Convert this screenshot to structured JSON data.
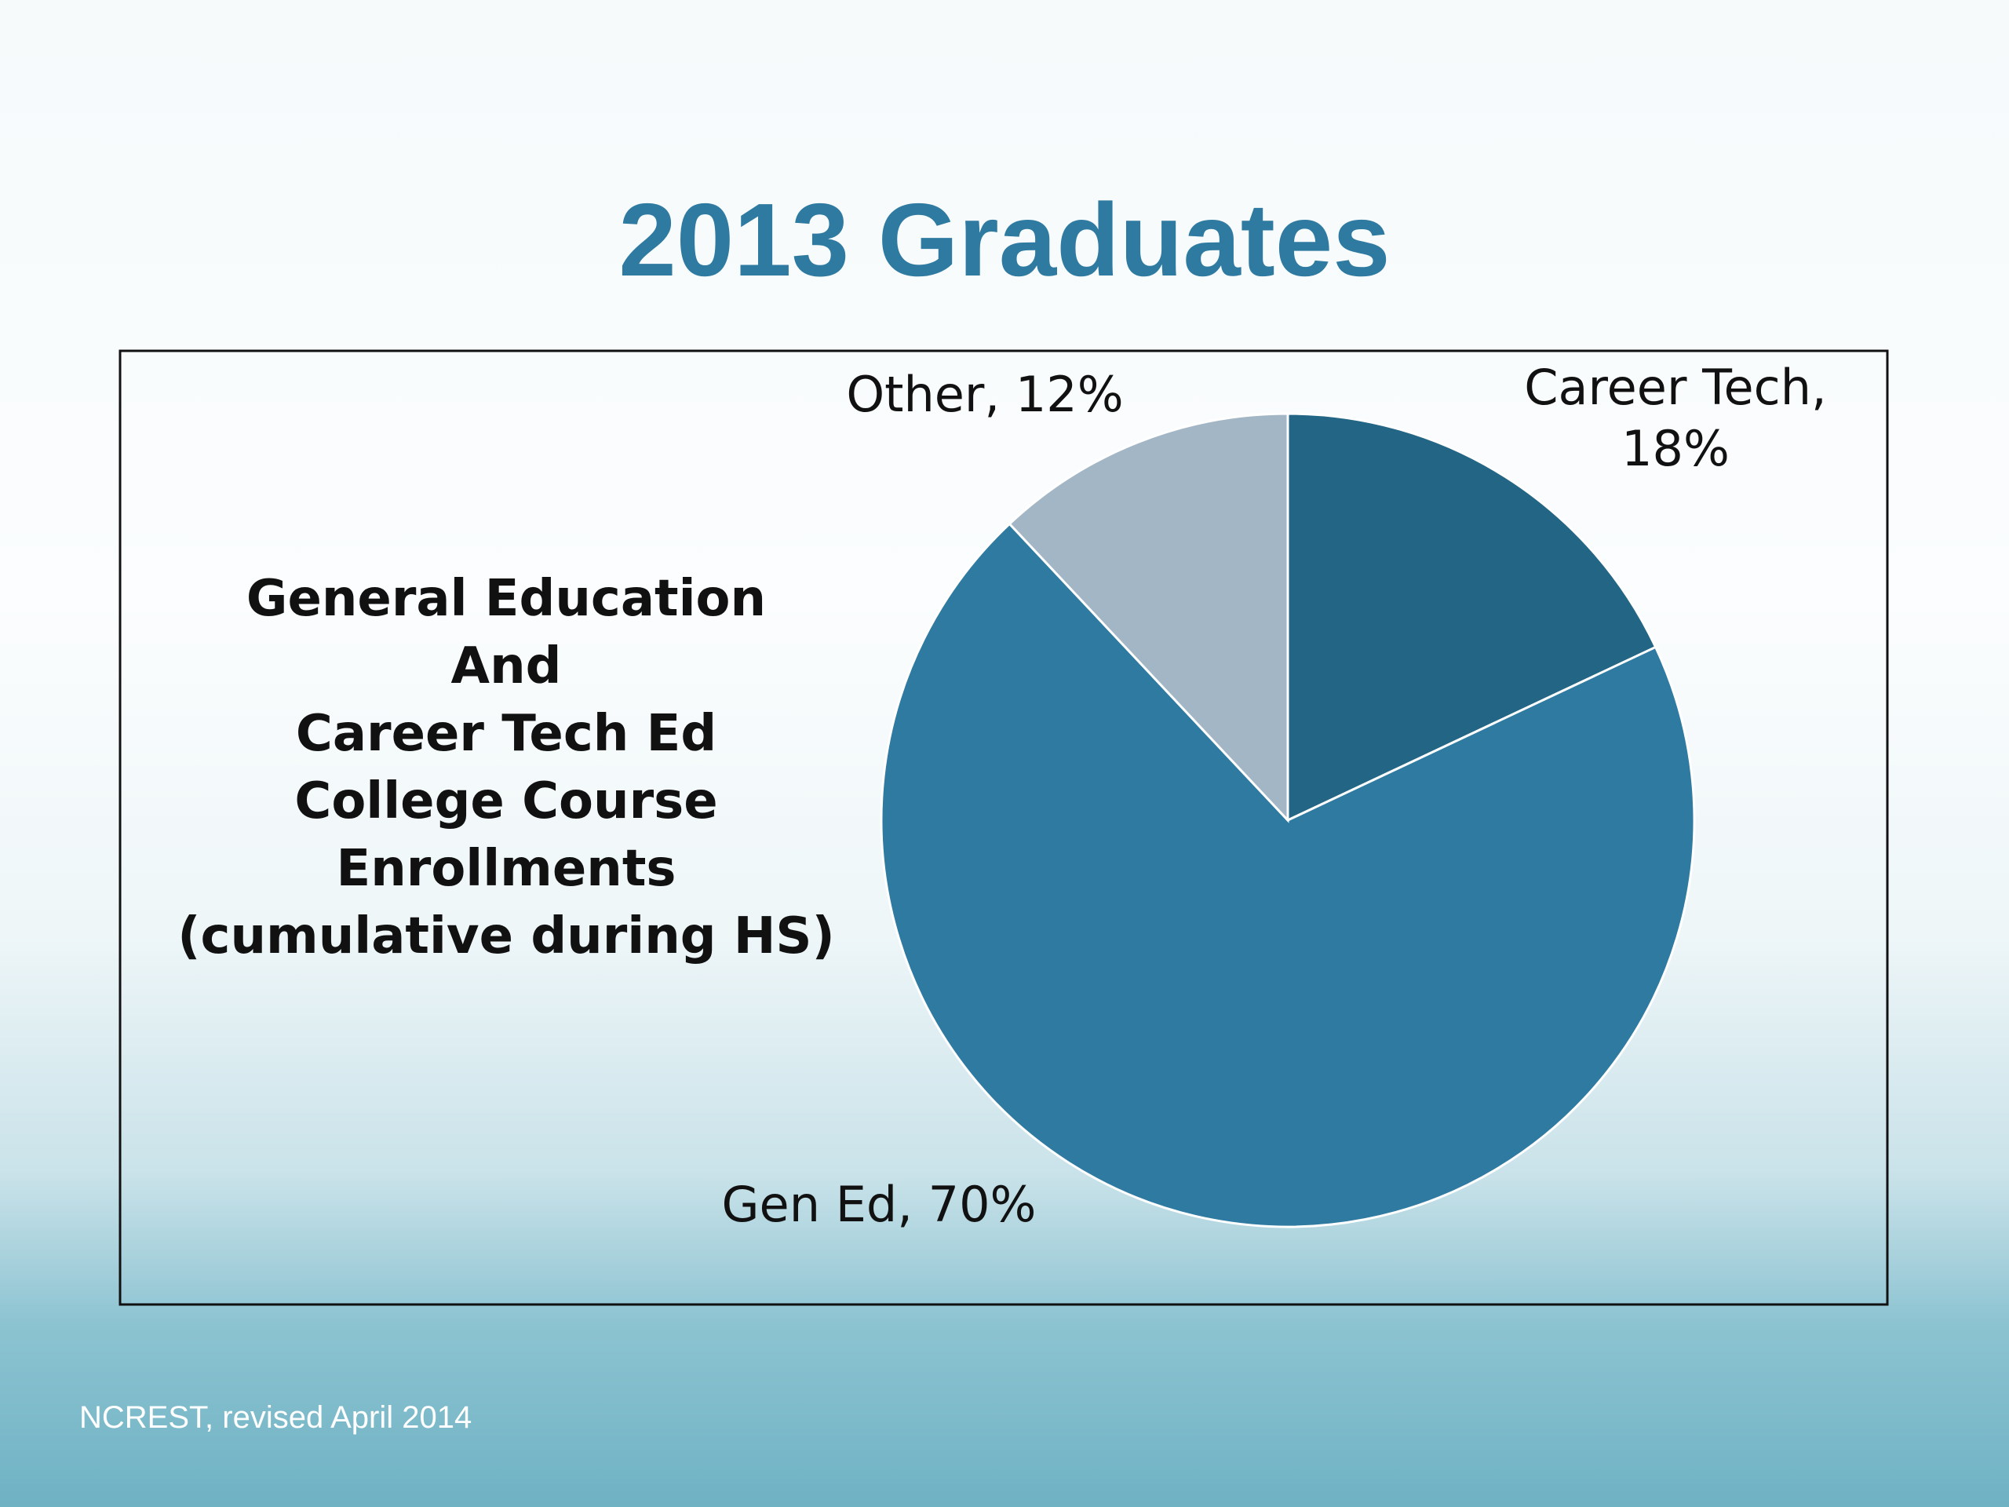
{
  "title": "2013 Graduates",
  "chart_data": {
    "type": "pie",
    "annotation": [
      "General Education",
      "And",
      "Career Tech Ed",
      "College Course Enrollments",
      "(cumulative during HS)"
    ],
    "values": [
      18,
      70,
      12
    ],
    "value_labels": [
      "Career Tech, 18%",
      "Gen Ed, 70%",
      "Other, 12%"
    ],
    "colors": [
      "#236584",
      "#2e7aa1",
      "#a2b6c6"
    ]
  },
  "footer": "NCREST, revised April 2014"
}
